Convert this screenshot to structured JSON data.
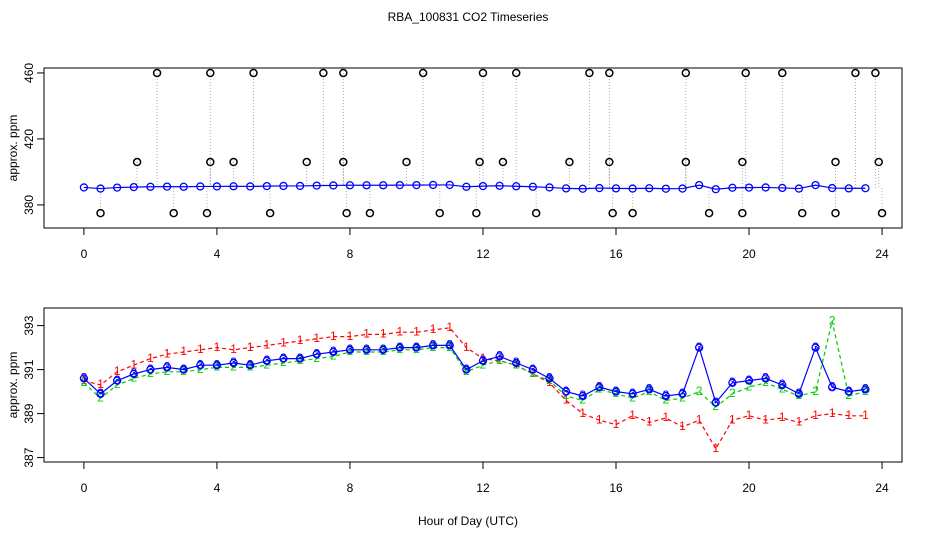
{
  "chart_data": [
    {
      "type": "line",
      "title": "RBA_100831  CO2 Timeseries",
      "ylabel": "approx. ppm",
      "x": [
        0,
        0.5,
        1,
        1.5,
        2,
        2.5,
        3,
        3.5,
        4,
        4.5,
        5,
        5.5,
        6,
        6.5,
        7,
        7.5,
        8,
        8.5,
        9,
        9.5,
        10,
        10.5,
        11,
        11.5,
        12,
        12.5,
        13,
        13.5,
        14,
        14.5,
        15,
        15.5,
        16,
        16.5,
        17,
        17.5,
        18,
        18.5,
        19,
        19.5,
        20,
        20.5,
        21,
        21.5,
        22,
        22.5,
        23,
        23.5
      ],
      "series": [
        {
          "color": "#0000ff",
          "marker": "circle",
          "values": [
            390.6,
            389.9,
            390.5,
            390.8,
            391.0,
            391.1,
            391.0,
            391.2,
            391.2,
            391.3,
            391.2,
            391.4,
            391.5,
            391.5,
            391.7,
            391.8,
            391.9,
            391.9,
            391.9,
            392.0,
            392.0,
            392.1,
            392.1,
            391.0,
            391.4,
            391.6,
            391.3,
            391.0,
            390.6,
            390.0,
            389.8,
            390.2,
            390.0,
            389.9,
            390.1,
            389.8,
            389.9,
            392.0,
            389.5,
            390.4,
            390.5,
            390.6,
            390.3,
            389.9,
            392.0,
            390.2,
            390.0,
            390.1
          ]
        }
      ],
      "points": {
        "color": "#000000",
        "x": [
          2.2,
          3.8,
          5.1,
          7.2,
          7.8,
          10.2,
          12.0,
          13.0,
          15.2,
          15.8,
          18.1,
          19.9,
          21.0,
          23.2,
          23.8,
          1.6,
          3.8,
          4.5,
          6.7,
          7.8,
          9.7,
          11.9,
          12.6,
          14.6,
          15.8,
          18.1,
          19.8,
          22.6,
          23.9,
          0.5,
          2.7,
          3.7,
          5.6,
          7.9,
          8.6,
          10.7,
          11.8,
          13.6,
          15.9,
          16.5,
          18.8,
          19.8,
          21.6,
          22.6,
          24.0
        ],
        "y": [
          460,
          460,
          460,
          460,
          460,
          460,
          460,
          460,
          460,
          460,
          460,
          460,
          460,
          460,
          460,
          406,
          406,
          406,
          406,
          406,
          406,
          406,
          406,
          406,
          406,
          406,
          406,
          406,
          406,
          375,
          375,
          375,
          375,
          375,
          375,
          375,
          375,
          375,
          375,
          375,
          375,
          375,
          375,
          375,
          375
        ]
      },
      "xlim": [
        -1.2,
        24.6
      ],
      "xticks": [
        0,
        4,
        8,
        12,
        16,
        20,
        24
      ],
      "ylim": [
        366,
        463
      ],
      "yticks": [
        380,
        420,
        460
      ]
    },
    {
      "type": "line",
      "ylabel": "approx. ppm",
      "xlabel": "Hour of Day (UTC)",
      "x": [
        0,
        0.5,
        1,
        1.5,
        2,
        2.5,
        3,
        3.5,
        4,
        4.5,
        5,
        5.5,
        6,
        6.5,
        7,
        7.5,
        8,
        8.5,
        9,
        9.5,
        10,
        10.5,
        11,
        11.5,
        12,
        12.5,
        13,
        13.5,
        14,
        14.5,
        15,
        15.5,
        16,
        16.5,
        17,
        17.5,
        18,
        18.5,
        19,
        19.5,
        20,
        20.5,
        21,
        21.5,
        22,
        22.5,
        23,
        23.5
      ],
      "series": [
        {
          "color": "#ff0000",
          "pch": "1",
          "dash": true,
          "values": [
            390.5,
            390.3,
            390.9,
            391.2,
            391.5,
            391.7,
            391.8,
            391.9,
            392.0,
            391.9,
            392.0,
            392.1,
            392.2,
            392.3,
            392.4,
            392.5,
            392.5,
            392.6,
            392.6,
            392.7,
            392.7,
            392.8,
            392.9,
            392.0,
            391.5,
            391.4,
            391.2,
            390.8,
            390.4,
            389.6,
            389.0,
            388.7,
            388.5,
            388.9,
            388.6,
            388.8,
            388.4,
            388.7,
            387.4,
            388.7,
            388.9,
            388.7,
            388.8,
            388.6,
            388.9,
            389.0,
            388.9,
            388.9
          ]
        },
        {
          "color": "#00cd00",
          "pch": "2",
          "dash": true,
          "values": [
            390.4,
            389.7,
            390.3,
            390.6,
            390.8,
            390.9,
            390.9,
            391.0,
            391.1,
            391.1,
            391.1,
            391.2,
            391.3,
            391.4,
            391.5,
            391.6,
            391.8,
            391.8,
            391.8,
            391.9,
            391.9,
            392.0,
            392.0,
            390.9,
            391.2,
            391.4,
            391.2,
            390.8,
            390.5,
            389.8,
            389.6,
            390.1,
            389.9,
            389.7,
            390.0,
            389.6,
            389.7,
            390.0,
            389.3,
            389.9,
            390.2,
            390.4,
            390.1,
            389.8,
            390.0,
            393.2,
            389.8,
            390.0
          ]
        },
        {
          "color": "#0000ff",
          "pch": "3",
          "marker": "circle",
          "values": [
            390.6,
            389.9,
            390.5,
            390.8,
            391.0,
            391.1,
            391.0,
            391.2,
            391.2,
            391.3,
            391.2,
            391.4,
            391.5,
            391.5,
            391.7,
            391.8,
            391.9,
            391.9,
            391.9,
            392.0,
            392.0,
            392.1,
            392.1,
            391.0,
            391.4,
            391.6,
            391.3,
            391.0,
            390.6,
            390.0,
            389.8,
            390.2,
            390.0,
            389.9,
            390.1,
            389.8,
            389.9,
            392.0,
            389.5,
            390.4,
            390.5,
            390.6,
            390.3,
            389.9,
            392.0,
            390.2,
            390.0,
            390.1
          ]
        }
      ],
      "xlim": [
        -1.2,
        24.6
      ],
      "xticks": [
        0,
        4,
        8,
        12,
        16,
        20,
        24
      ],
      "ylim": [
        386.8,
        393.8
      ],
      "yticks": [
        387,
        389,
        391,
        393
      ]
    }
  ]
}
